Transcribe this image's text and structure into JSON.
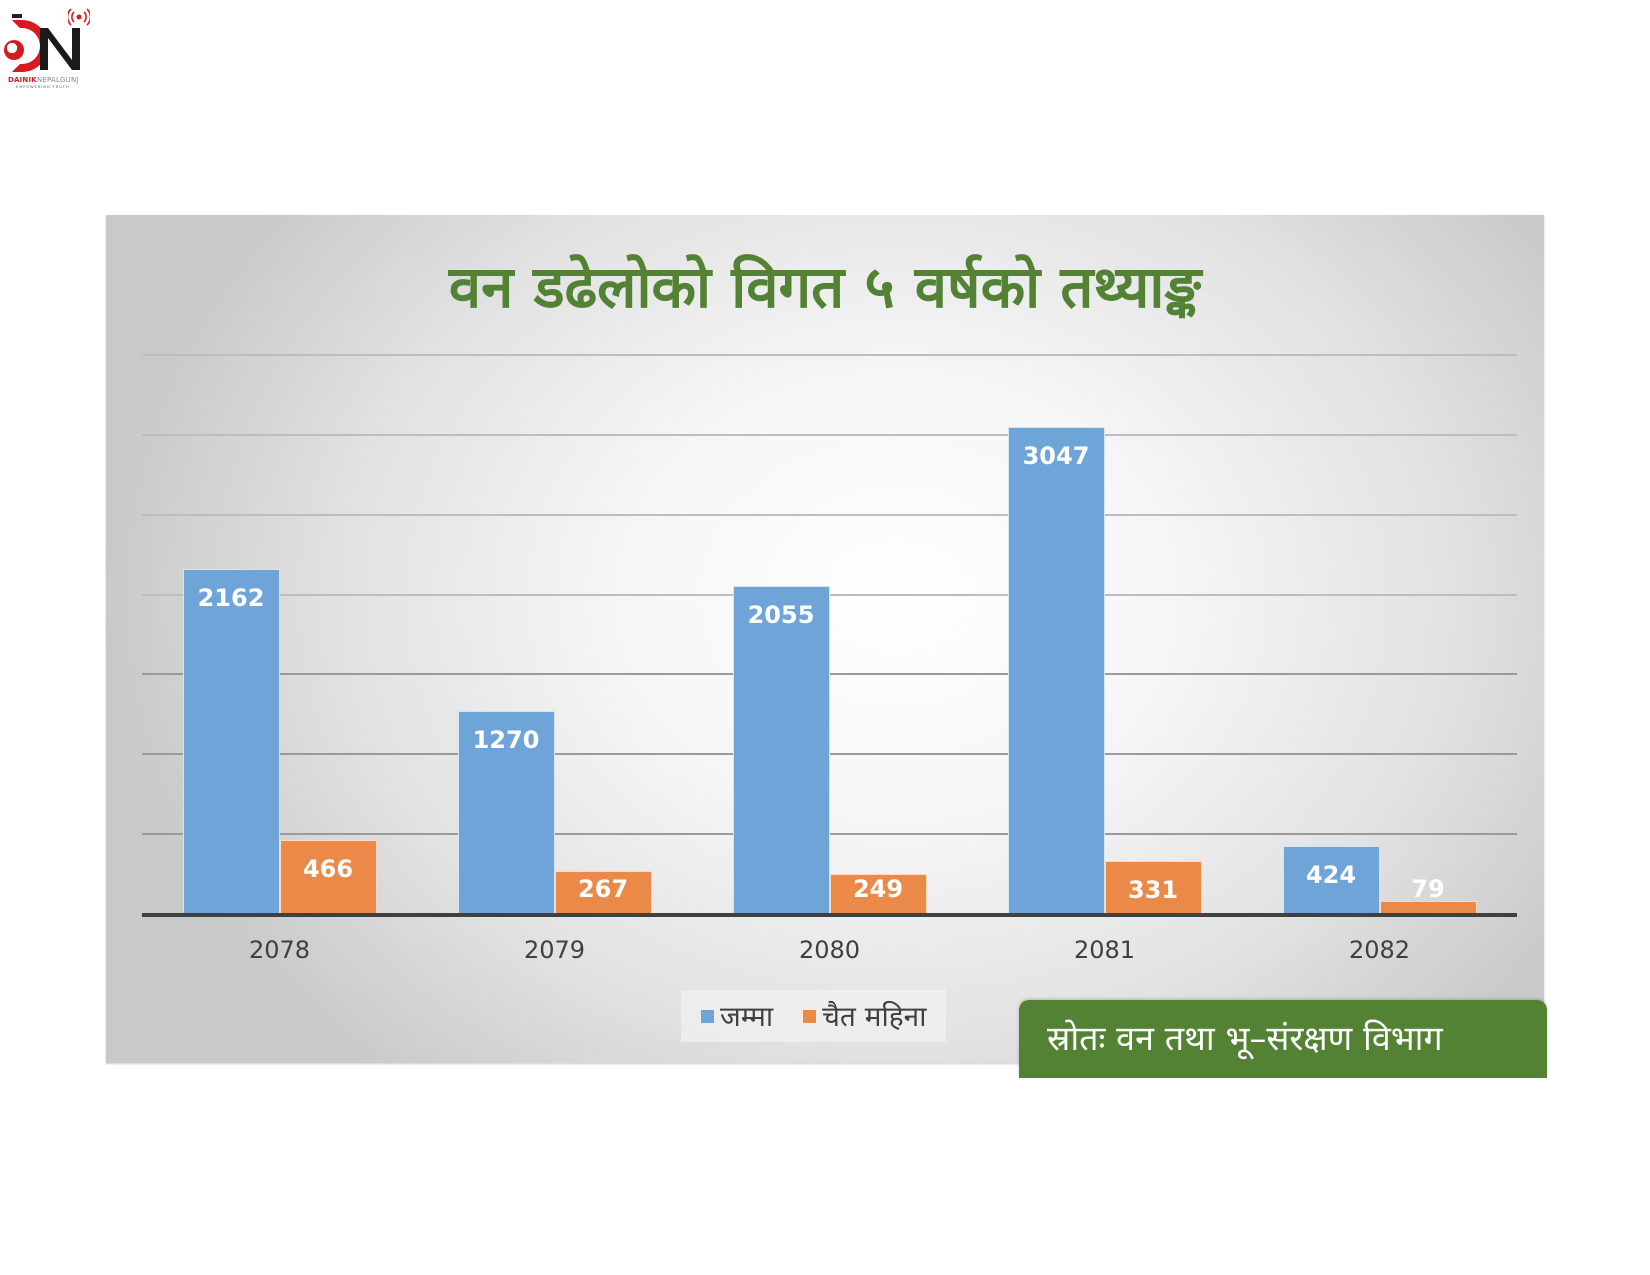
{
  "logo": {
    "brand_primary": "DAINIK",
    "brand_secondary": "NEPALGUNJ",
    "tagline": "EMPOWERING TRUTH",
    "icon": "dainik-nepalgunj-logo-icon"
  },
  "chart": {
    "title": "वन डढेलोको विगत ५ वर्षको तथ्याङ्क",
    "source": "स्रोतः वन तथा भू–संरक्षण विभाग",
    "legend": [
      {
        "label": "जम्मा",
        "color": "#6fa4d8"
      },
      {
        "label": "चैत महिना",
        "color": "#eb8a48"
      }
    ],
    "categories": [
      "2078",
      "2079",
      "2080",
      "2081",
      "2082"
    ],
    "labels": {
      "total": [
        "2162",
        "1270",
        "2055",
        "3047",
        "424"
      ],
      "chaitra": [
        "466",
        "267",
        "249",
        "331",
        "79"
      ]
    }
  },
  "chart_data": {
    "type": "bar",
    "title": "वन डढेलोको विगत ५ वर्षको तथ्याङ्क",
    "categories": [
      "2078",
      "2079",
      "2080",
      "2081",
      "2082"
    ],
    "series": [
      {
        "name": "जम्मा",
        "values": [
          2162,
          1270,
          2055,
          3047,
          424
        ],
        "color": "#6fa4d8"
      },
      {
        "name": "चैत महिना",
        "values": [
          466,
          267,
          249,
          331,
          79
        ],
        "color": "#eb8a48"
      }
    ],
    "xlabel": "",
    "ylabel": "",
    "ylim": [
      0,
      3500
    ],
    "gridlines": [
      0,
      500,
      1000,
      1500,
      2000,
      2500,
      3000,
      3500
    ],
    "grid": true,
    "y_tick_labels_visible": false,
    "data_labels": true,
    "legend_position": "bottom",
    "annotation": "स्रोतः वन तथा भू–संरक्षण विभाग"
  }
}
